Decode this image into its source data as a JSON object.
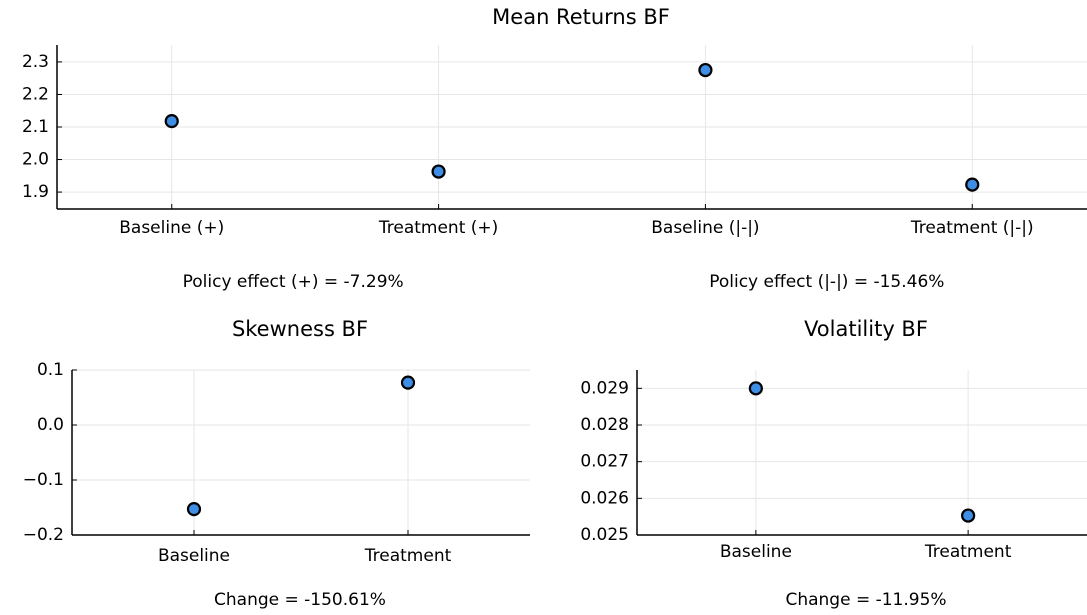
{
  "chart_data": [
    {
      "type": "scatter",
      "title": "Mean Returns BF",
      "categories": [
        "Baseline (+)",
        "Treatment (+)",
        "Baseline (|-|)",
        "Treatment (|-|)"
      ],
      "values": [
        2.118,
        1.963,
        2.275,
        1.923
      ],
      "color": "#3f8ee6",
      "ylim": [
        1.848,
        2.352
      ],
      "yticks": [
        {
          "value": 1.9,
          "label": "1.9"
        },
        {
          "value": 2,
          "label": "2.0"
        },
        2.1,
        2.2,
        2.3
      ],
      "grid": true,
      "annotations": [
        "Policy effect (+) = -7.29%",
        "Policy effect (|-|) = -15.46%"
      ]
    },
    {
      "type": "scatter",
      "title": "Skewness BF",
      "categories": [
        "Baseline",
        "Treatment"
      ],
      "values": [
        -0.153,
        0.077
      ],
      "color": "#3f8ee6",
      "ylim": [
        -0.2,
        0.1
      ],
      "yticks": [
        {
          "value": -0.2,
          "label": "−0.2"
        },
        {
          "value": -0.1,
          "label": "−0.1"
        },
        {
          "value": 0,
          "label": "0.0"
        },
        0.1
      ],
      "grid": true,
      "annotations": [
        "Change = -150.61%"
      ]
    },
    {
      "type": "scatter",
      "title": "Volatility BF",
      "categories": [
        "Baseline",
        "Treatment"
      ],
      "values": [
        0.029,
        0.02553
      ],
      "color": "#3f8ee6",
      "ylim": [
        0.025,
        0.0295
      ],
      "yticks": [
        0.025,
        0.026,
        0.027,
        0.028,
        0.029
      ],
      "grid": true,
      "annotations": [
        "Change = -11.95%"
      ]
    }
  ]
}
